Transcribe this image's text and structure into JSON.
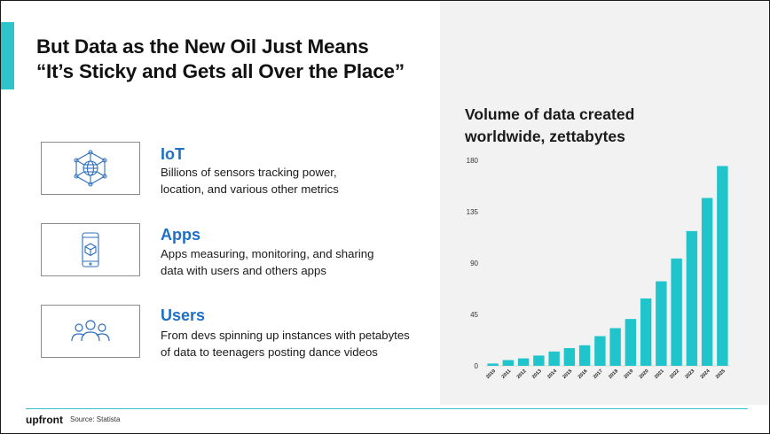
{
  "slide": {
    "title_line1": "But Data as the New Oil Just Means",
    "title_line2": "“It’s Sticky and Gets all Over the Place”"
  },
  "features": [
    {
      "icon": "network-globe-icon",
      "title": "IoT",
      "desc_line1": "Billions of sensors tracking power,",
      "desc_line2": "location, and various other metrics"
    },
    {
      "icon": "phone-app-icon",
      "title": "Apps",
      "desc_line1": "Apps measuring, monitoring, and sharing",
      "desc_line2": "data with users and others apps"
    },
    {
      "icon": "users-group-icon",
      "title": "Users",
      "desc_line1": "From devs spinning up instances with petabytes",
      "desc_line2": "of data to teenagers posting dance videos"
    }
  ],
  "footer": {
    "brand": "upfront",
    "source": "Source: Statista"
  },
  "colors": {
    "accent": "#2ec4c9",
    "bar": "#20c5cb",
    "heading_blue": "#1f6fc6",
    "panel": "#f2f2f2"
  },
  "chart_data": {
    "type": "bar",
    "title_line1": "Volume of data created",
    "title_line2": "worldwide, zettabytes",
    "categories": [
      "2010",
      "2011",
      "2012",
      "2013",
      "2014",
      "2015",
      "2016",
      "2017",
      "2018",
      "2019",
      "2020",
      "2021",
      "2022",
      "2023",
      "2024",
      "2025"
    ],
    "values": [
      2,
      5,
      6.5,
      9,
      12.5,
      15.5,
      18,
      26,
      33,
      41,
      59,
      74,
      94,
      118,
      147,
      175
    ],
    "yticks": [
      0,
      45,
      90,
      135,
      180
    ],
    "ylim": [
      0,
      180
    ],
    "grid": false
  }
}
